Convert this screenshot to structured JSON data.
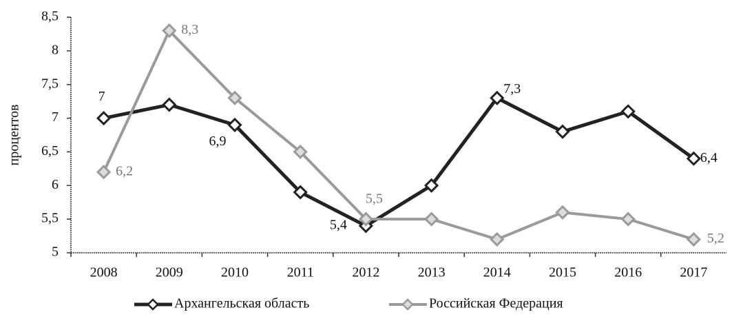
{
  "chart_data": {
    "type": "line",
    "y_label": "процентов",
    "categories": [
      "2008",
      "2009",
      "2010",
      "2011",
      "2012",
      "2013",
      "2014",
      "2015",
      "2016",
      "2017"
    ],
    "series": [
      {
        "name": "Архангельская область",
        "color": "#222222",
        "values": [
          7,
          7.2,
          6.9,
          5.9,
          5.4,
          6.0,
          7.3,
          6.8,
          7.1,
          6.4
        ],
        "value_labels": [
          "7",
          null,
          "6,9",
          null,
          "5,4",
          null,
          "7,3",
          null,
          null,
          "6,4"
        ]
      },
      {
        "name": "Российская Федерация",
        "color": "#9a9a9a",
        "values": [
          6.2,
          8.3,
          7.3,
          6.5,
          5.5,
          5.5,
          5.2,
          5.6,
          5.5,
          5.2
        ],
        "value_labels": [
          "6,2",
          "8,3",
          null,
          null,
          "5,5",
          null,
          null,
          null,
          null,
          "5,2"
        ]
      }
    ],
    "ylim": [
      5,
      8.5
    ],
    "yticks": [
      5,
      {
        "value": 5.5,
        "label": "5,5"
      },
      6,
      {
        "value": 6.5,
        "label": "6,5"
      },
      7,
      {
        "value": 7.5,
        "label": "7,5"
      },
      8,
      {
        "value": 8.5,
        "label": "8,5"
      }
    ],
    "grid": false,
    "legend": "bottom"
  }
}
